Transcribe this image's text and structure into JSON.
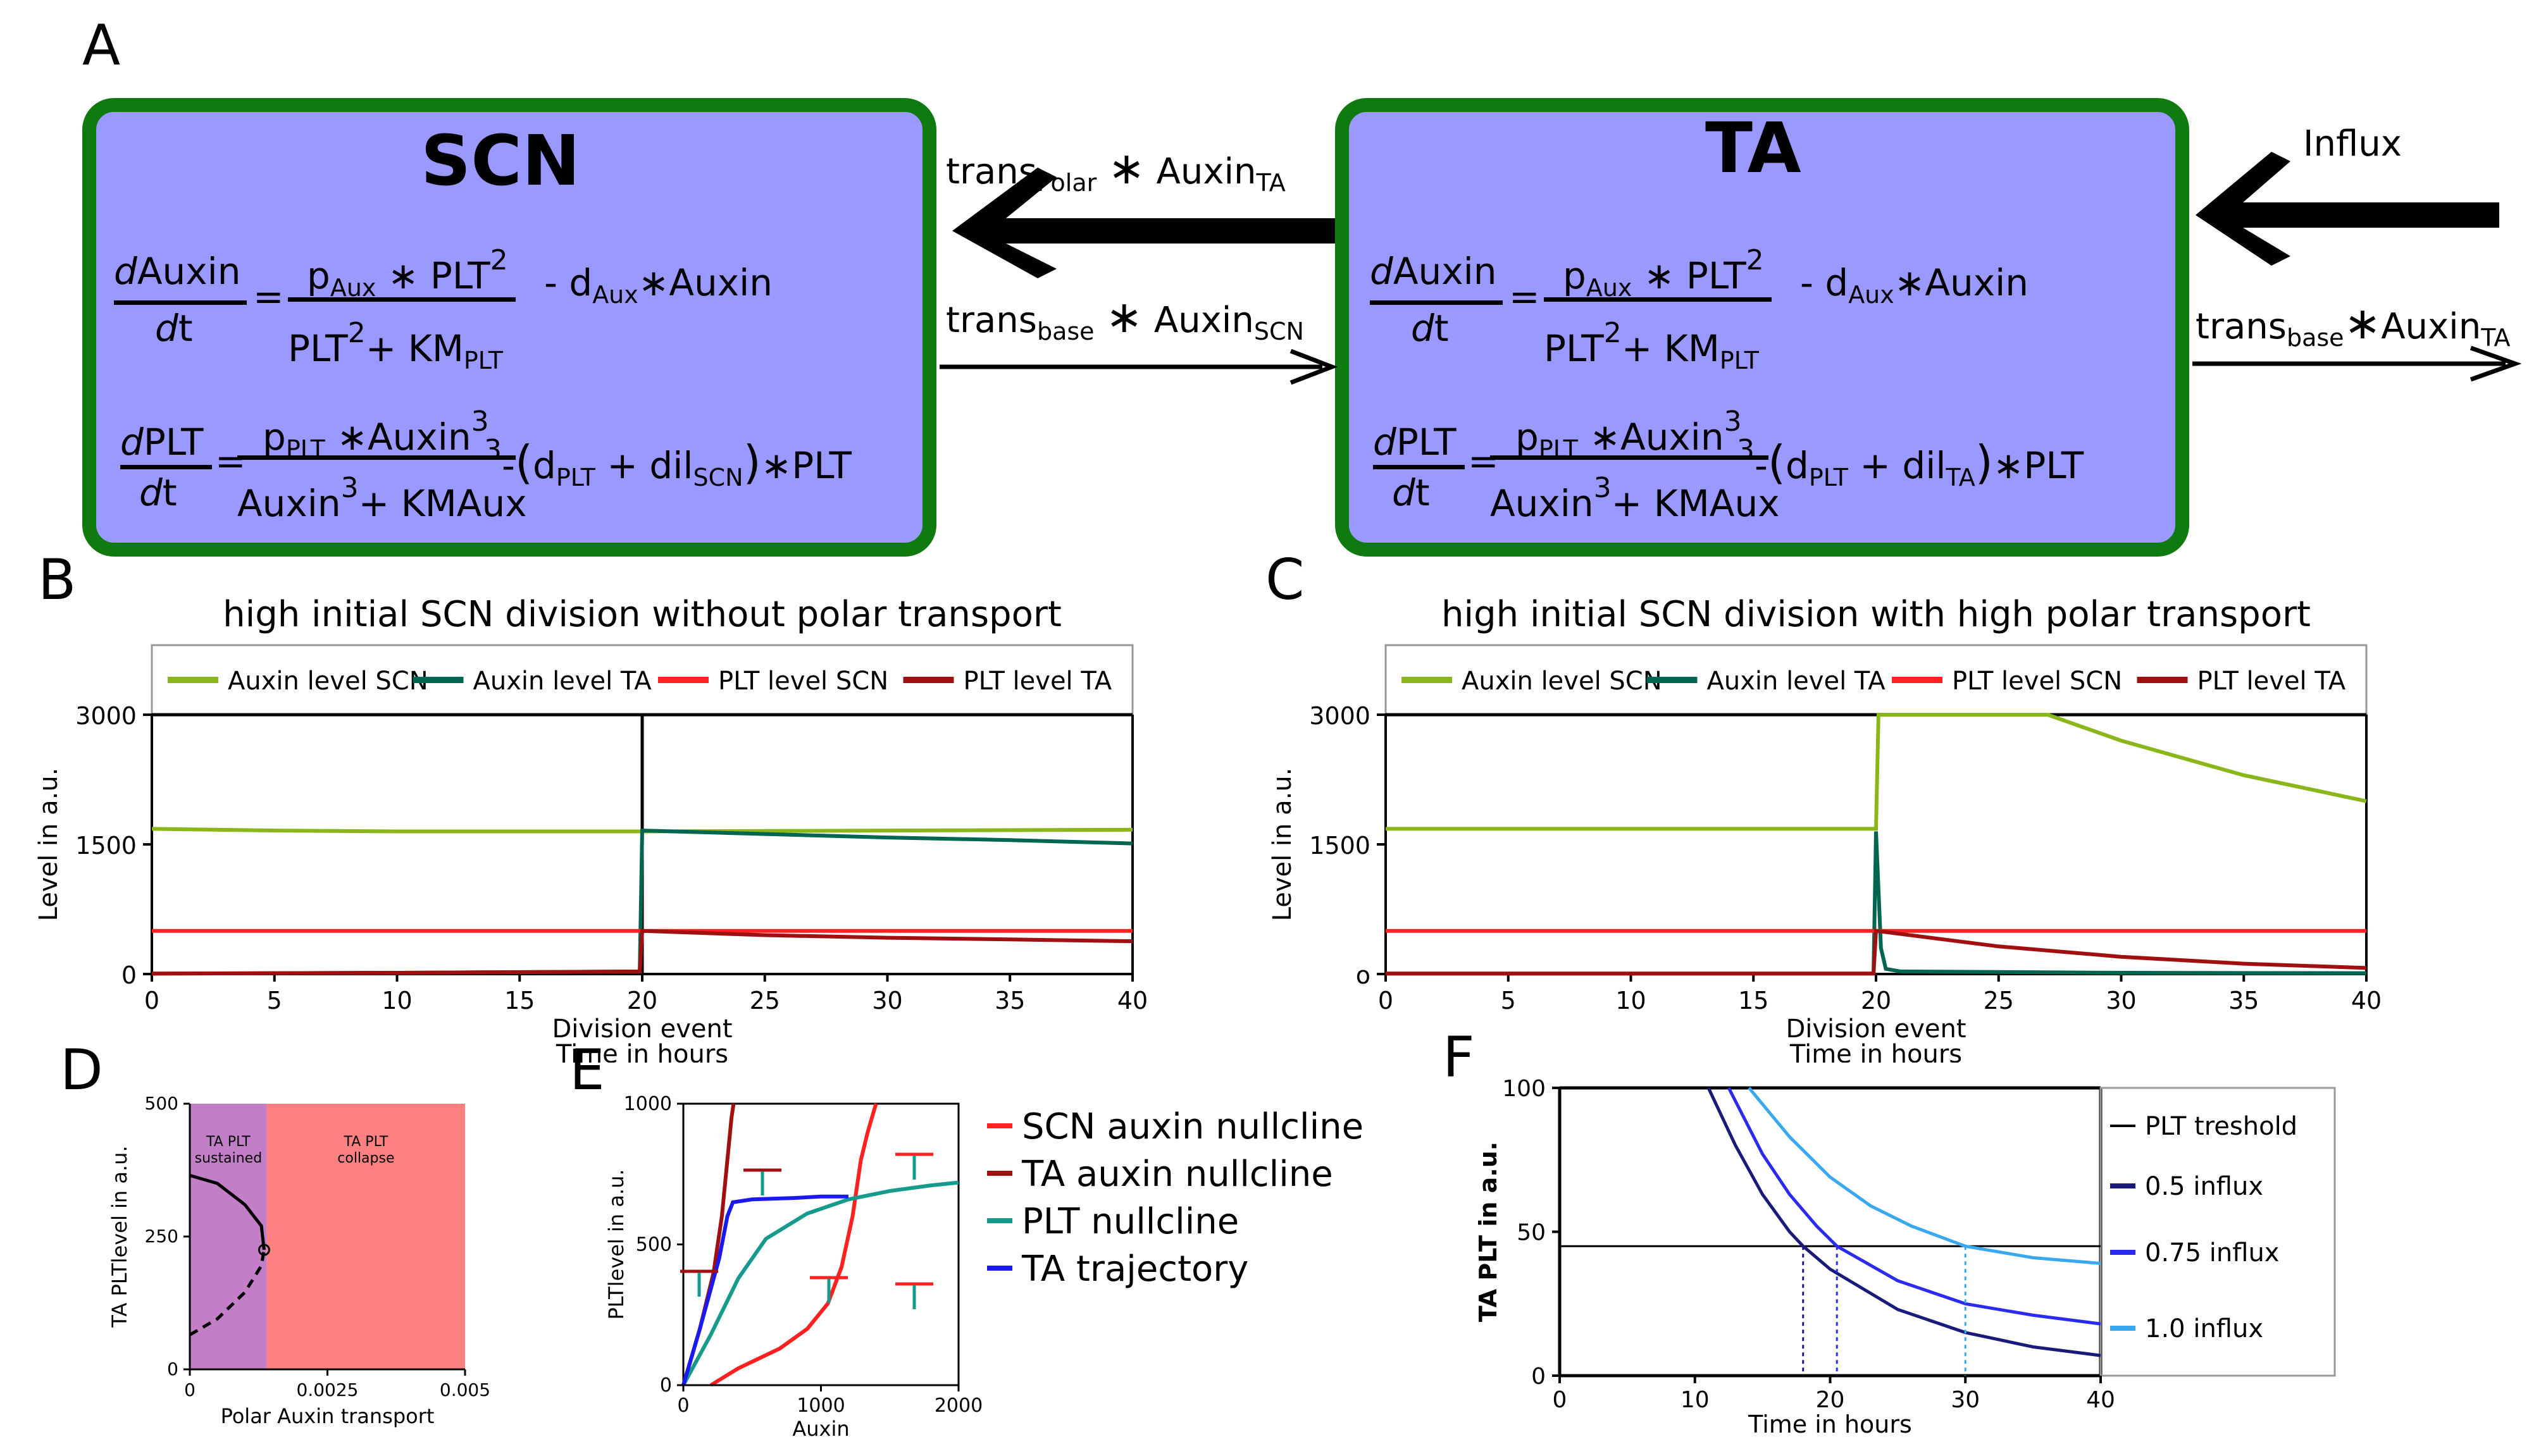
{
  "panels": {
    "a": "A",
    "b": "B",
    "c": "C",
    "d": "D",
    "e": "E",
    "f": "F"
  },
  "scn_box": {
    "title": "SCN"
  },
  "ta_box": {
    "title": "TA"
  },
  "equations": {
    "d_num": "d",
    "auxin": "Auxin",
    "plt": "PLT",
    "dt": "dt",
    "eq": "=",
    "p": "p",
    "aux_sub": "Aux",
    "plt_sub": "PLT",
    "star": "∗",
    "sq": "2",
    "cube": "3",
    "plus": "+",
    "km": "KM",
    "minus_d": "- d",
    "minus": "-",
    "dil": "dil",
    "scn_sub": "SCN",
    "ta_sub": "TA",
    "lparen": "(",
    "rparen": ")",
    "times_plt": "∗PLT"
  },
  "arrows": {
    "trans": "trans",
    "polar_sub": "Polar",
    "base_sub": "base",
    "auxin": "Auxin",
    "ta_sub": "TA",
    "scn_sub": "SCN",
    "star": "∗",
    "influx": "Influx"
  },
  "colors": {
    "box_fill": "#9999ff",
    "box_border": "#0f7a0f",
    "auxin_scn": "#8ab61a",
    "auxin_ta": "#00664f",
    "plt_scn": "#ff2020",
    "plt_ta": "#a01010",
    "d_sustained": "#c27ec6",
    "d_collapse": "#ff8080",
    "e_nullcline_plt": "#159a8c",
    "e_traj": "#1a1aee",
    "f_05": "#1a1a7a",
    "f_075": "#2a2af0",
    "f_10": "#3aa8ee"
  },
  "legend_bc": [
    "Auxin level SCN",
    "Auxin level TA",
    "PLT level SCN",
    "PLT level TA"
  ],
  "chart_data": [
    {
      "type": "line",
      "title": "high initial SCN division  without polar transport",
      "xlabel": "Time in hours",
      "xlabel_extra": "Division event",
      "ylabel": "Level in a.u.",
      "xlim": [
        0,
        40
      ],
      "ylim": [
        0,
        3000
      ],
      "xticks": [
        "0",
        "5",
        "10",
        "15",
        "20",
        "25",
        "30",
        "35",
        "40"
      ],
      "yticks": [
        "0",
        "1500",
        "3000"
      ],
      "series": [
        {
          "name": "Auxin level SCN",
          "x": [
            0,
            5,
            10,
            20,
            30,
            40
          ],
          "y": [
            1680,
            1660,
            1650,
            1650,
            1660,
            1670
          ]
        },
        {
          "name": "Auxin level TA",
          "x": [
            0,
            10,
            19.9,
            20,
            25,
            30,
            35,
            40
          ],
          "y": [
            5,
            15,
            30,
            1660,
            1620,
            1580,
            1550,
            1510
          ]
        },
        {
          "name": "PLT level SCN",
          "x": [
            0,
            20,
            40
          ],
          "y": [
            500,
            500,
            500
          ]
        },
        {
          "name": "PLT level TA",
          "x": [
            0,
            10,
            19.9,
            20,
            25,
            30,
            35,
            40
          ],
          "y": [
            5,
            15,
            30,
            500,
            450,
            420,
            400,
            380
          ]
        }
      ]
    },
    {
      "type": "line",
      "title": "high initial SCN division  with high polar transport",
      "xlabel": "Time in hours",
      "xlabel_extra": "Division event",
      "ylabel": "Level in a.u.",
      "xlim": [
        0,
        40
      ],
      "ylim": [
        0,
        3000
      ],
      "xticks": [
        "0",
        "5",
        "10",
        "15",
        "20",
        "25",
        "30",
        "35",
        "40"
      ],
      "yticks": [
        "o",
        "1500",
        "3000"
      ],
      "series": [
        {
          "name": "Auxin level SCN",
          "x": [
            0,
            19.9,
            20,
            20.1,
            27,
            30,
            35,
            40
          ],
          "y": [
            1680,
            1680,
            1680,
            3000,
            3000,
            2700,
            2300,
            2000
          ]
        },
        {
          "name": "Auxin level TA",
          "x": [
            0,
            19.9,
            20,
            20.2,
            20.4,
            21,
            30,
            40
          ],
          "y": [
            5,
            5,
            1650,
            300,
            60,
            30,
            15,
            10
          ]
        },
        {
          "name": "PLT level SCN",
          "x": [
            0,
            20,
            40
          ],
          "y": [
            500,
            500,
            500
          ]
        },
        {
          "name": "PLT level TA",
          "x": [
            0,
            19.9,
            20,
            25,
            30,
            35,
            40
          ],
          "y": [
            5,
            5,
            500,
            320,
            200,
            120,
            70
          ]
        }
      ]
    },
    {
      "type": "line",
      "xlabel": "Polar Auxin transport",
      "ylabel": "TA PLTlevel in a.u.",
      "xlim": [
        0,
        0.005
      ],
      "ylim": [
        0,
        500
      ],
      "xticks": [
        "0",
        "0.0025",
        "0.005"
      ],
      "yticks": [
        "0",
        "250",
        "500"
      ],
      "regions": [
        {
          "label": "TA PLT sustained",
          "x": [
            0,
            0.0014
          ]
        },
        {
          "label": "TA PLT collapse",
          "x": [
            0.0014,
            0.005
          ]
        }
      ],
      "series": [
        {
          "name": "stable",
          "x": [
            0,
            0.0005,
            0.001,
            0.0013,
            0.00135
          ],
          "y": [
            365,
            350,
            310,
            270,
            225
          ]
        },
        {
          "name": "unstable",
          "x": [
            0,
            0.0005,
            0.001,
            0.0013,
            0.00135
          ],
          "y": [
            65,
            95,
            145,
            195,
            225
          ]
        }
      ]
    },
    {
      "type": "line",
      "xlabel": "Auxin",
      "ylabel": "PLTlevel in a.u.",
      "xlim": [
        0,
        2000
      ],
      "ylim": [
        0,
        1000
      ],
      "xticks": [
        "0",
        "1000",
        "2000"
      ],
      "yticks": [
        "0",
        "500",
        "1000"
      ],
      "legend": [
        "SCN auxin nullcline",
        "TA auxin nullcline",
        "PLT nullcline",
        "TA trajectory"
      ],
      "series": [
        {
          "name": "SCN auxin nullcline",
          "x": [
            200,
            400,
            700,
            900,
            1050,
            1150,
            1230,
            1290,
            1340,
            1400
          ],
          "y": [
            0,
            60,
            130,
            200,
            290,
            420,
            600,
            800,
            900,
            1000
          ]
        },
        {
          "name": "TA auxin nullcline",
          "x": [
            0,
            120,
            220,
            280,
            320,
            350,
            365
          ],
          "y": [
            0,
            200,
            400,
            600,
            800,
            950,
            1000
          ]
        },
        {
          "name": "PLT nullcline",
          "x": [
            0,
            200,
            400,
            600,
            900,
            1200,
            1500,
            1800,
            2000
          ],
          "y": [
            0,
            180,
            380,
            520,
            610,
            660,
            690,
            710,
            720
          ]
        },
        {
          "name": "TA trajectory",
          "x": [
            0,
            120,
            260,
            320,
            360,
            500,
            800,
            1000,
            1200
          ],
          "y": [
            0,
            200,
            450,
            600,
            650,
            660,
            665,
            670,
            670
          ]
        }
      ]
    },
    {
      "type": "line",
      "xlabel": "Time in hours",
      "ylabel": "TA PLT in a.u.",
      "xlim": [
        0,
        40
      ],
      "ylim": [
        0,
        100
      ],
      "xticks": [
        "0",
        "10",
        "20",
        "30",
        "40"
      ],
      "yticks": [
        "0",
        "50",
        "100"
      ],
      "legend": [
        "PLT treshold",
        "0.5 influx",
        "0.75 influx",
        "1.0 influx"
      ],
      "threshold": 45,
      "series": [
        {
          "name": "0.5 influx",
          "x": [
            11,
            13,
            15,
            17,
            18,
            20,
            25,
            30,
            35,
            40
          ],
          "y": [
            100,
            80,
            63,
            50,
            45,
            37,
            23,
            15,
            10,
            7
          ]
        },
        {
          "name": "0.75 influx",
          "x": [
            12.5,
            15,
            17,
            19,
            20.5,
            25,
            30,
            35,
            40
          ],
          "y": [
            100,
            77,
            63,
            52,
            45,
            33,
            25,
            21,
            18
          ]
        },
        {
          "name": "1.0 influx",
          "x": [
            14,
            17,
            20,
            23,
            26,
            30,
            35,
            40
          ],
          "y": [
            100,
            83,
            69,
            59,
            52,
            45,
            41,
            39
          ]
        }
      ]
    }
  ]
}
